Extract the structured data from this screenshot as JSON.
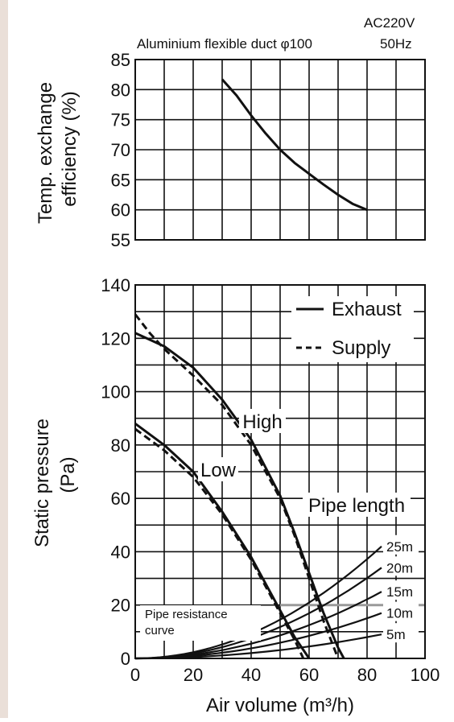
{
  "header": {
    "voltage": "AC220V",
    "frequency": "50Hz",
    "duct_label": "Aluminium flexible duct φ100"
  },
  "colors": {
    "ink": "#111111",
    "grid": "#111111",
    "pipe_highlight": "#9a9a9a",
    "background": "#ffffff"
  },
  "chart_data": [
    {
      "type": "line",
      "title": "",
      "ylabel_lines": [
        "Temp. exchange",
        "efficiency  (%)"
      ],
      "xlim": [
        0,
        100
      ],
      "ylim": [
        55,
        85
      ],
      "y_ticks": [
        55,
        60,
        65,
        70,
        75,
        80,
        85
      ],
      "x_grid_step": 10,
      "grid": true,
      "series": [
        {
          "style": "solid",
          "points": [
            [
              30,
              81.7
            ],
            [
              35,
              79
            ],
            [
              40,
              75.7
            ],
            [
              45,
              72.7
            ],
            [
              50,
              70
            ],
            [
              55,
              67.8
            ],
            [
              60,
              66
            ],
            [
              65,
              64.2
            ],
            [
              70,
              62.5
            ],
            [
              75,
              61
            ],
            [
              80,
              60
            ]
          ]
        }
      ]
    },
    {
      "type": "line",
      "xlabel": "Air volume (m³/h)",
      "ylabel_lines": [
        "Static pressure",
        "(Pa)"
      ],
      "xlim": [
        0,
        100
      ],
      "ylim": [
        0,
        140
      ],
      "x_ticks": [
        0,
        20,
        40,
        60,
        80,
        100
      ],
      "y_ticks": [
        0,
        20,
        40,
        60,
        80,
        100,
        120,
        140
      ],
      "x_grid_step": 10,
      "y_grid_step": 10,
      "grid": true,
      "legend": {
        "position": "top-right",
        "entries": [
          {
            "style": "solid",
            "label": "Exhaust"
          },
          {
            "style": "dashed",
            "label": "Supply"
          }
        ]
      },
      "annotations": {
        "high": "High",
        "low": "Low",
        "pipe_length": "Pipe length",
        "pipe_resistance_line1": "Pipe resistance",
        "pipe_resistance_line2": "curve"
      },
      "series": [
        {
          "name": "Exhaust High",
          "style": "solid",
          "points": [
            [
              0,
              122
            ],
            [
              10,
              117
            ],
            [
              20,
              109
            ],
            [
              30,
              97
            ],
            [
              40,
              82
            ],
            [
              50,
              61
            ],
            [
              55,
              47
            ],
            [
              60,
              32
            ],
            [
              65,
              17
            ],
            [
              70,
              4
            ],
            [
              72,
              0
            ]
          ]
        },
        {
          "name": "Supply High",
          "style": "dashed",
          "points": [
            [
              0,
              129
            ],
            [
              5,
              122
            ],
            [
              10,
              116
            ],
            [
              20,
              106
            ],
            [
              30,
              95
            ],
            [
              40,
              80
            ],
            [
              50,
              60
            ],
            [
              55,
              46
            ],
            [
              60,
              30
            ],
            [
              65,
              14
            ],
            [
              70,
              0
            ]
          ]
        },
        {
          "name": "Exhaust Low",
          "style": "solid",
          "points": [
            [
              0,
              88
            ],
            [
              10,
              80
            ],
            [
              20,
              70
            ],
            [
              30,
              55
            ],
            [
              40,
              38
            ],
            [
              50,
              18
            ],
            [
              55,
              8
            ],
            [
              60,
              0
            ]
          ]
        },
        {
          "name": "Supply Low",
          "style": "dashed",
          "points": [
            [
              0,
              86
            ],
            [
              10,
              78
            ],
            [
              20,
              68
            ],
            [
              30,
              54
            ],
            [
              40,
              37
            ],
            [
              50,
              17
            ],
            [
              55,
              7
            ],
            [
              58,
              0
            ]
          ]
        }
      ],
      "pipe_curves": [
        {
          "label": "25m",
          "end": [
            85,
            42
          ]
        },
        {
          "label": "20m",
          "end": [
            85,
            34
          ]
        },
        {
          "label": "15m",
          "end": [
            85,
            25
          ]
        },
        {
          "label": "10m",
          "end": [
            85,
            17
          ]
        },
        {
          "label": "5m",
          "end": [
            85,
            9
          ]
        }
      ]
    }
  ]
}
